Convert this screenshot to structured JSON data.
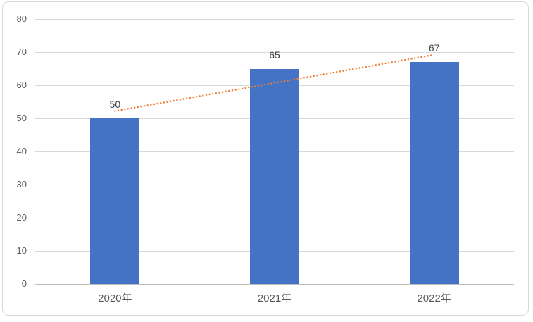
{
  "chart_data": {
    "type": "bar",
    "title": "",
    "categories": [
      "2020年",
      "2021年",
      "2022年"
    ],
    "values": [
      50,
      65,
      67
    ],
    "data_labels": [
      "50",
      "65",
      "67"
    ],
    "xlabel": "",
    "ylabel": "",
    "ylim": [
      0,
      80
    ],
    "yticks": [
      0,
      10,
      20,
      30,
      40,
      50,
      60,
      70,
      80
    ],
    "grid": true,
    "legend_position": "none",
    "bar_color": "#4472c4",
    "gridline_color": "#d9d9d9",
    "axis_line_color": "#bfbfbf",
    "tick_label_color": "#595959",
    "data_label_color": "#404040",
    "trendline": {
      "type": "linear",
      "line_style": "dotted",
      "color": "#ed7d31",
      "start_value": 52.2,
      "end_value": 69.2
    }
  }
}
